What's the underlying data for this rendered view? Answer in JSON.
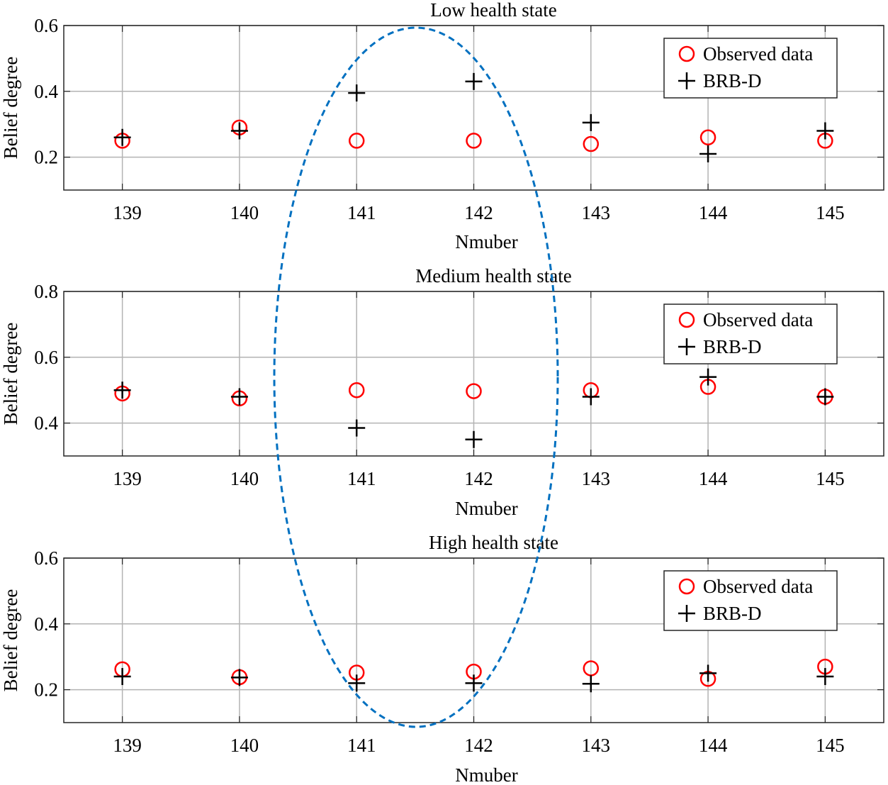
{
  "chart_data": [
    {
      "type": "scatter",
      "title": "Low health state",
      "xlabel": "Nmuber",
      "ylabel": "Belief degree",
      "x": [
        139,
        140,
        141,
        142,
        143,
        144,
        145
      ],
      "xlim": [
        138.5,
        145.5
      ],
      "ylim": [
        0.1,
        0.6
      ],
      "yticks": [
        0.2,
        0.4,
        0.6
      ],
      "grid": true,
      "legend_position": "top-right",
      "series": [
        {
          "name": "Observed data",
          "marker": "circle",
          "color": "#ff0000",
          "values": [
            0.25,
            0.29,
            0.25,
            0.25,
            0.24,
            0.26,
            0.25
          ]
        },
        {
          "name": "BRB-D",
          "marker": "plus",
          "color": "#000000",
          "values": [
            0.26,
            0.28,
            0.395,
            0.43,
            0.305,
            0.21,
            0.28
          ]
        }
      ]
    },
    {
      "type": "scatter",
      "title": "Medium health state",
      "xlabel": "Nmuber",
      "ylabel": "Belief degree",
      "x": [
        139,
        140,
        141,
        142,
        143,
        144,
        145
      ],
      "xlim": [
        138.5,
        145.5
      ],
      "ylim": [
        0.3,
        0.8
      ],
      "yticks": [
        0.4,
        0.6,
        0.8
      ],
      "grid": true,
      "legend_position": "top-right",
      "series": [
        {
          "name": "Observed data",
          "marker": "circle",
          "color": "#ff0000",
          "values": [
            0.49,
            0.475,
            0.5,
            0.497,
            0.5,
            0.51,
            0.48
          ]
        },
        {
          "name": "BRB-D",
          "marker": "plus",
          "color": "#000000",
          "values": [
            0.5,
            0.48,
            0.385,
            0.35,
            0.48,
            0.54,
            0.48
          ]
        }
      ]
    },
    {
      "type": "scatter",
      "title": "High health state",
      "xlabel": "Nmuber",
      "ylabel": "Belief degree",
      "x": [
        139,
        140,
        141,
        142,
        143,
        144,
        145
      ],
      "xlim": [
        138.5,
        145.5
      ],
      "ylim": [
        0.1,
        0.6
      ],
      "yticks": [
        0.2,
        0.4,
        0.6
      ],
      "grid": true,
      "legend_position": "top-right",
      "series": [
        {
          "name": "Observed data",
          "marker": "circle",
          "color": "#ff0000",
          "values": [
            0.262,
            0.238,
            0.252,
            0.255,
            0.265,
            0.233,
            0.27
          ]
        },
        {
          "name": "BRB-D",
          "marker": "plus",
          "color": "#000000",
          "values": [
            0.24,
            0.237,
            0.22,
            0.22,
            0.218,
            0.25,
            0.24
          ]
        }
      ]
    }
  ],
  "annotation": {
    "shape": "dashed-ellipse",
    "color": "#0070c0",
    "highlights": [
      141,
      142
    ]
  }
}
